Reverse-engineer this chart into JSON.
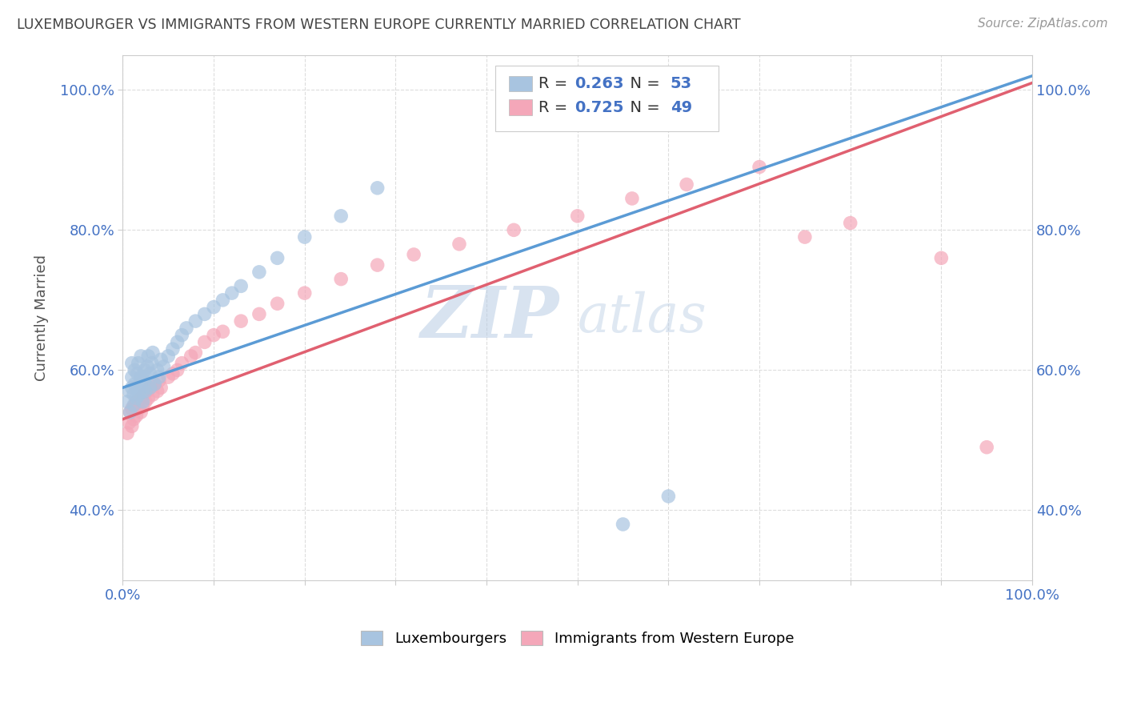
{
  "title": "LUXEMBOURGER VS IMMIGRANTS FROM WESTERN EUROPE CURRENTLY MARRIED CORRELATION CHART",
  "source": "Source: ZipAtlas.com",
  "ylabel": "Currently Married",
  "xlim": [
    0,
    1.0
  ],
  "ylim": [
    0.3,
    1.05
  ],
  "x_ticks": [
    0.0,
    0.1,
    0.2,
    0.3,
    0.4,
    0.5,
    0.6,
    0.7,
    0.8,
    0.9,
    1.0
  ],
  "y_ticks": [
    0.4,
    0.6,
    0.8,
    1.0
  ],
  "y_tick_labels": [
    "40.0%",
    "60.0%",
    "80.0%",
    "100.0%"
  ],
  "lux_color": "#a8c4e0",
  "imm_color": "#f4a7b9",
  "lux_line_color": "#5b9bd5",
  "imm_line_color": "#e06070",
  "lux_R": 0.263,
  "lux_N": 53,
  "imm_R": 0.725,
  "imm_N": 49,
  "lux_scatter_x": [
    0.005,
    0.007,
    0.008,
    0.01,
    0.01,
    0.01,
    0.012,
    0.012,
    0.013,
    0.013,
    0.015,
    0.015,
    0.016,
    0.017,
    0.018,
    0.019,
    0.02,
    0.02,
    0.022,
    0.022,
    0.023,
    0.024,
    0.025,
    0.025,
    0.027,
    0.028,
    0.03,
    0.03,
    0.032,
    0.033,
    0.035,
    0.038,
    0.04,
    0.042,
    0.045,
    0.05,
    0.055,
    0.06,
    0.065,
    0.07,
    0.08,
    0.09,
    0.1,
    0.11,
    0.12,
    0.13,
    0.15,
    0.17,
    0.2,
    0.24,
    0.28,
    0.55,
    0.6
  ],
  "lux_scatter_y": [
    0.555,
    0.57,
    0.54,
    0.575,
    0.59,
    0.61,
    0.55,
    0.565,
    0.58,
    0.6,
    0.56,
    0.575,
    0.595,
    0.61,
    0.565,
    0.58,
    0.59,
    0.62,
    0.555,
    0.57,
    0.585,
    0.6,
    0.57,
    0.59,
    0.605,
    0.62,
    0.575,
    0.595,
    0.61,
    0.625,
    0.58,
    0.6,
    0.59,
    0.615,
    0.605,
    0.62,
    0.63,
    0.64,
    0.65,
    0.66,
    0.67,
    0.68,
    0.69,
    0.7,
    0.71,
    0.72,
    0.74,
    0.76,
    0.79,
    0.82,
    0.86,
    0.38,
    0.42
  ],
  "imm_scatter_x": [
    0.005,
    0.007,
    0.008,
    0.01,
    0.01,
    0.012,
    0.013,
    0.015,
    0.015,
    0.018,
    0.02,
    0.02,
    0.022,
    0.023,
    0.025,
    0.027,
    0.028,
    0.03,
    0.033,
    0.035,
    0.038,
    0.04,
    0.042,
    0.05,
    0.055,
    0.06,
    0.065,
    0.075,
    0.08,
    0.09,
    0.1,
    0.11,
    0.13,
    0.15,
    0.17,
    0.2,
    0.24,
    0.28,
    0.32,
    0.37,
    0.43,
    0.5,
    0.56,
    0.62,
    0.7,
    0.75,
    0.8,
    0.9,
    0.95
  ],
  "imm_scatter_y": [
    0.51,
    0.525,
    0.54,
    0.52,
    0.545,
    0.53,
    0.55,
    0.535,
    0.555,
    0.545,
    0.54,
    0.56,
    0.55,
    0.565,
    0.555,
    0.57,
    0.56,
    0.575,
    0.565,
    0.58,
    0.57,
    0.585,
    0.575,
    0.59,
    0.595,
    0.6,
    0.61,
    0.62,
    0.625,
    0.64,
    0.65,
    0.655,
    0.67,
    0.68,
    0.695,
    0.71,
    0.73,
    0.75,
    0.765,
    0.78,
    0.8,
    0.82,
    0.845,
    0.865,
    0.89,
    0.79,
    0.81,
    0.76,
    0.49
  ],
  "lux_trend_x0": 0.0,
  "lux_trend_y0": 0.575,
  "lux_trend_x1": 1.0,
  "lux_trend_y1": 1.02,
  "imm_trend_x0": 0.0,
  "imm_trend_y0": 0.53,
  "imm_trend_x1": 1.0,
  "imm_trend_y1": 1.01,
  "watermark_zip": "ZIP",
  "watermark_atlas": "atlas",
  "background_color": "#ffffff",
  "grid_color": "#dddddd",
  "title_color": "#444444",
  "axis_color": "#4472c4"
}
